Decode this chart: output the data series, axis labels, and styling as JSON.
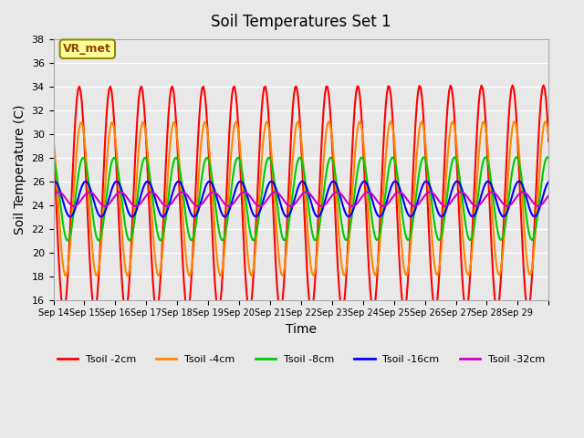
{
  "title": "Soil Temperatures Set 1",
  "xlabel": "Time",
  "ylabel": "Soil Temperature (C)",
  "ylim": [
    16,
    38
  ],
  "xlim": [
    0,
    360
  ],
  "background_color": "#e8e8e8",
  "plot_bg_color": "#e8e8e8",
  "annotation_text": "VR_met",
  "annotation_box_color": "#ffff99",
  "annotation_border_color": "#8B8B00",
  "series": {
    "Tsoil -2cm": {
      "color": "#ff0000",
      "lw": 1.5
    },
    "Tsoil -4cm": {
      "color": "#ff8800",
      "lw": 1.5
    },
    "Tsoil -8cm": {
      "color": "#00cc00",
      "lw": 1.5
    },
    "Tsoil -16cm": {
      "color": "#0000ff",
      "lw": 1.5
    },
    "Tsoil -32cm": {
      "color": "#cc00cc",
      "lw": 1.5
    }
  },
  "x_tick_labels": [
    "Sep 14",
    "Sep 15",
    "Sep 16",
    "Sep 17",
    "Sep 18",
    "Sep 19",
    "Sep 20",
    "Sep 21",
    "Sep 22",
    "Sep 23",
    "Sep 24",
    "Sep 25",
    "Sep 26",
    "Sep 27",
    "Sep 28",
    "Sep 29"
  ],
  "y_ticks": [
    16,
    18,
    20,
    22,
    24,
    26,
    28,
    30,
    32,
    34,
    36,
    38
  ],
  "n_days": 16,
  "hours_per_day": 24,
  "base_temp": 24.5,
  "amp_2cm": 9.5,
  "amp_4cm": 6.5,
  "amp_8cm": 3.5,
  "amp_16cm": 1.5,
  "amp_32cm": 0.6,
  "phase_shift_4cm": 1.5,
  "phase_shift_8cm": 3.0,
  "phase_shift_16cm": 5.0,
  "phase_shift_32cm": 8.0,
  "trend_2cm": 0.03,
  "trend_4cm": 0.025,
  "trend_8cm": 0.015,
  "trend_16cm": 0.005,
  "trend_32cm": 0.002
}
